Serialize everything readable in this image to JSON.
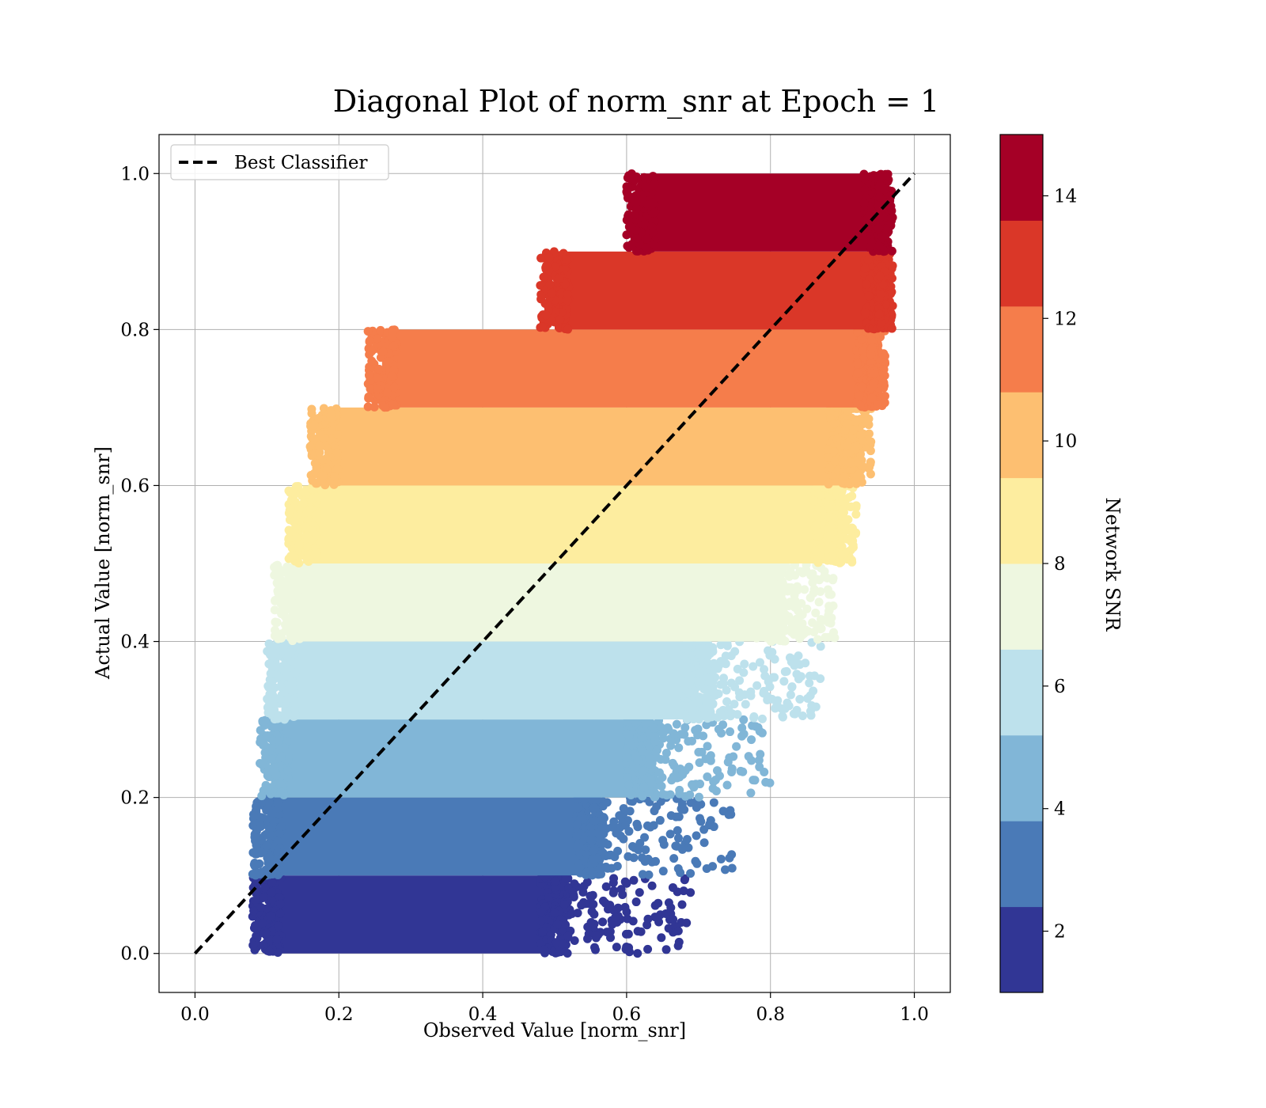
{
  "chart_data": {
    "type": "scatter",
    "title": "Diagonal Plot of norm_snr at Epoch = 1",
    "xlabel": "Observed Value [norm_snr]",
    "ylabel": "Actual Value [norm_snr]",
    "xlim": [
      -0.05,
      1.05
    ],
    "ylim": [
      -0.05,
      1.05
    ],
    "xticks": [
      "0.0",
      "0.2",
      "0.4",
      "0.6",
      "0.8",
      "1.0"
    ],
    "yticks": [
      "0.0",
      "0.2",
      "0.4",
      "0.6",
      "0.8",
      "1.0"
    ],
    "grid": true,
    "legend": {
      "position": "top-left",
      "entries": [
        "Best Classifier"
      ]
    },
    "reference_line": {
      "name": "Best Classifier",
      "style": "dashed",
      "color": "#000000",
      "x": [
        0.0,
        1.0
      ],
      "y": [
        0.0,
        1.0
      ]
    },
    "colorbar": {
      "label": "Network SNR",
      "range": [
        1,
        15
      ],
      "ticks": [
        "2",
        "4",
        "6",
        "8",
        "10",
        "12",
        "14"
      ],
      "bands": [
        {
          "from": 1,
          "to": 2.4,
          "color": "#313695"
        },
        {
          "from": 2.4,
          "to": 3.8,
          "color": "#4a7ab7"
        },
        {
          "from": 3.8,
          "to": 5.2,
          "color": "#81b6d7"
        },
        {
          "from": 5.2,
          "to": 6.6,
          "color": "#bde1ec"
        },
        {
          "from": 6.6,
          "to": 8.0,
          "color": "#eef7e0"
        },
        {
          "from": 8.0,
          "to": 9.4,
          "color": "#fded9f"
        },
        {
          "from": 9.4,
          "to": 10.8,
          "color": "#fdbf71"
        },
        {
          "from": 10.8,
          "to": 12.2,
          "color": "#f57d4b"
        },
        {
          "from": 12.2,
          "to": 13.6,
          "color": "#da3728"
        },
        {
          "from": 13.6,
          "to": 15,
          "color": "#a50026"
        }
      ]
    },
    "scatter_bands": [
      {
        "y_range": [
          0.0,
          0.1
        ],
        "color": "#313695",
        "dense_x": [
          0.1,
          0.5
        ],
        "sparse_x_max": 0.69
      },
      {
        "y_range": [
          0.1,
          0.2
        ],
        "color": "#4a7ab7",
        "dense_x": [
          0.1,
          0.55
        ],
        "sparse_x_max": 0.75
      },
      {
        "y_range": [
          0.2,
          0.3
        ],
        "color": "#81b6d7",
        "dense_x": [
          0.11,
          0.62
        ],
        "sparse_x_max": 0.8
      },
      {
        "y_range": [
          0.3,
          0.4
        ],
        "color": "#bde1ec",
        "dense_x": [
          0.12,
          0.7
        ],
        "sparse_x_max": 0.87
      },
      {
        "y_range": [
          0.4,
          0.5
        ],
        "color": "#eef7e0",
        "dense_x": [
          0.13,
          0.8
        ],
        "sparse_x_max": 0.89
      },
      {
        "y_range": [
          0.5,
          0.6
        ],
        "color": "#fded9f",
        "dense_x": [
          0.15,
          0.88
        ],
        "sparse_x_max": 0.92
      },
      {
        "y_range": [
          0.6,
          0.7
        ],
        "color": "#fdbf71",
        "dense_x": [
          0.18,
          0.9
        ],
        "sparse_x_max": 0.94
      },
      {
        "y_range": [
          0.7,
          0.8
        ],
        "color": "#f57d4b",
        "dense_x": [
          0.26,
          0.94
        ],
        "sparse_x_max": 0.95
      },
      {
        "y_range": [
          0.8,
          0.9
        ],
        "color": "#da3728",
        "dense_x": [
          0.5,
          0.95
        ],
        "sparse_x_max": 0.96
      },
      {
        "y_range": [
          0.9,
          1.0
        ],
        "color": "#a50026",
        "dense_x": [
          0.62,
          0.95
        ],
        "sparse_x_max": 0.96
      }
    ]
  }
}
